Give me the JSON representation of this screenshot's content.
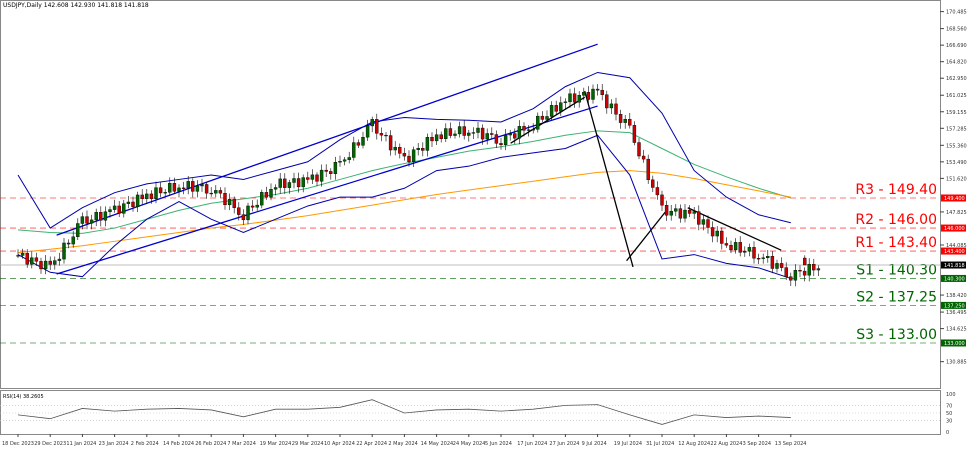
{
  "header": {
    "symbol": "USDJPY,Daily",
    "ohlc": "142.608 142.930 141.818 141.818"
  },
  "chart_data": [
    {
      "type": "candlestick",
      "categories": [
        "18 Dec 2023",
        "29 Dec 2023",
        "11 Jan 2024",
        "23 Jan 2024",
        "2 Feb 2024",
        "14 Feb 2024",
        "26 Feb 2024",
        "7 Mar 2024",
        "19 Mar 2024",
        "29 Mar 2024",
        "10 Apr 2024",
        "22 Apr 2024",
        "2 May 2024",
        "14 May 2024",
        "24 May 2024",
        "5 Jun 2024",
        "17 Jun 2024",
        "27 Jun 2024",
        "9 Jul 2024",
        "19 Jul 2024",
        "31 Jul 2024",
        "12 Aug 2024",
        "22 Aug 2024",
        "3 Sep 2024",
        "13 Sep 2024"
      ],
      "close": [
        142.9,
        141.5,
        146.7,
        148.0,
        149.7,
        150.8,
        150.5,
        147.5,
        150.9,
        151.4,
        153.1,
        157.7,
        153.7,
        156.5,
        157.1,
        156.0,
        157.7,
        160.5,
        161.4,
        157.1,
        148.0,
        147.5,
        144.1,
        143.0,
        140.7
      ],
      "last": {
        "open": 142.608,
        "high": 142.93,
        "low": 141.818,
        "close": 141.818
      },
      "series": [
        {
          "kind": "ma-green",
          "color": "#3cb371",
          "values": [
            145.8,
            145.5,
            145.4,
            146.0,
            147.0,
            148.0,
            148.8,
            149.3,
            149.8,
            150.5,
            151.5,
            152.5,
            153.3,
            154.0,
            154.7,
            155.2,
            155.8,
            156.5,
            157.0,
            156.8,
            155.0,
            153.2,
            151.8,
            150.5,
            149.4
          ]
        },
        {
          "kind": "ma-orange",
          "color": "#ff9900",
          "values": [
            143.2,
            143.6,
            144.0,
            144.5,
            145.0,
            145.5,
            146.0,
            146.4,
            146.9,
            147.4,
            148.0,
            148.6,
            149.2,
            149.8,
            150.3,
            150.8,
            151.3,
            151.8,
            152.3,
            152.5,
            152.2,
            151.6,
            150.9,
            150.2,
            149.5
          ]
        },
        {
          "kind": "bb-upper",
          "color": "#0000aa",
          "values": [
            152.0,
            146.0,
            148.3,
            150.0,
            151.0,
            151.5,
            152.0,
            151.5,
            152.5,
            153.5,
            156.0,
            158.0,
            158.5,
            158.3,
            158.2,
            158.0,
            159.5,
            162.0,
            163.6,
            163.0,
            159.0,
            152.5,
            149.5,
            147.5,
            146.6
          ]
        },
        {
          "kind": "bb-lower",
          "color": "#0000aa",
          "values": [
            143.0,
            141.0,
            140.5,
            144.0,
            147.0,
            149.0,
            147.0,
            145.5,
            147.0,
            148.5,
            149.5,
            149.5,
            150.5,
            152.5,
            153.0,
            154.0,
            154.5,
            155.0,
            156.5,
            152.0,
            142.5,
            143.0,
            142.0,
            141.5,
            140.3
          ]
        }
      ],
      "levels": [
        {
          "label": "R3 - 149.40",
          "price": 149.4,
          "tag": "149.400",
          "color": "#ff0000"
        },
        {
          "label": "R2 - 146.00",
          "price": 146.0,
          "tag": "146.000",
          "color": "#ff0000"
        },
        {
          "label": "R1 - 143.40",
          "price": 143.4,
          "tag": "143.400",
          "color": "#ff0000"
        },
        {
          "label": "S1 - 140.30",
          "price": 140.3,
          "tag": "140.300",
          "color": "#006400"
        },
        {
          "label": "S2 - 137.25",
          "price": 137.25,
          "tag": "137.250",
          "color": "#006400"
        },
        {
          "label": "S3 - 133.00",
          "price": 133.0,
          "tag": "133.000",
          "color": "#006400"
        }
      ],
      "current_price_tag": "141.818",
      "y_ticks": [
        "170.485",
        "168.560",
        "166.690",
        "164.820",
        "162.950",
        "161.025",
        "159.155",
        "157.285",
        "155.360",
        "153.490",
        "151.620",
        "147.825",
        "144.085",
        "138.420",
        "136.495",
        "134.625",
        "130.885"
      ],
      "ylim": [
        130.885,
        170.485
      ],
      "trendlines": [
        {
          "color": "#0000cc",
          "from": [
            1.2,
            145.2
          ],
          "to": [
            18.0,
            166.8
          ]
        },
        {
          "color": "#0000cc",
          "from": [
            1.2,
            140.8
          ],
          "to": [
            18.0,
            159.8
          ]
        },
        {
          "color": "#000000",
          "from": [
            15.3,
            155.6
          ],
          "to": [
            17.6,
            160.8
          ]
        },
        {
          "color": "#000000",
          "from": [
            17.6,
            161.5
          ],
          "to": [
            19.1,
            141.6
          ]
        },
        {
          "color": "#000000",
          "from": [
            18.9,
            142.3
          ],
          "to": [
            20.1,
            147.8
          ]
        },
        {
          "color": "#000000",
          "from": [
            20.8,
            148.3
          ],
          "to": [
            23.7,
            143.5
          ]
        }
      ]
    },
    {
      "type": "line",
      "title": "RSI(14) 38.2605",
      "ylim": [
        0,
        100
      ],
      "y_ticks": [
        "100",
        "70",
        "50",
        "30",
        "0"
      ],
      "values": [
        45,
        35,
        62,
        55,
        60,
        62,
        58,
        40,
        60,
        60,
        65,
        85,
        50,
        58,
        60,
        55,
        60,
        70,
        72,
        45,
        20,
        45,
        38,
        42,
        38
      ]
    }
  ]
}
